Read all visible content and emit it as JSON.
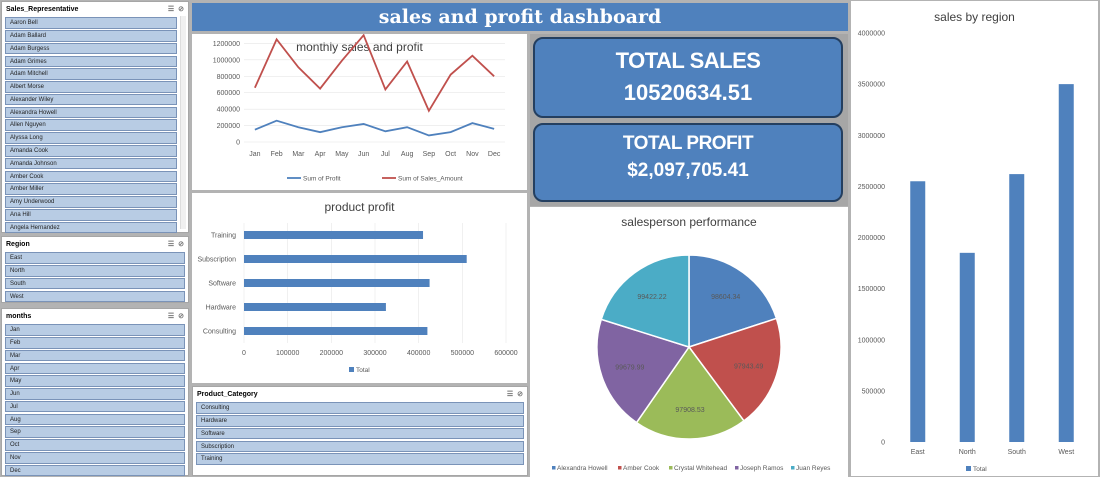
{
  "dashboard_title": "sales and profit dashboard",
  "slicers": {
    "sales_rep": {
      "header": "Sales_Representative",
      "items": [
        "Aaron Bell",
        "Adam Ballard",
        "Adam Burgess",
        "Adam Grimes",
        "Adam Mitchell",
        "Albert Morse",
        "Alexander Wiley",
        "Alexandra Howell",
        "Allen Nguyen",
        "Alyssa Long",
        "Amanda Cook",
        "Amanda Johnson",
        "Amber Cook",
        "Amber Miller",
        "Amy Underwood",
        "Ana Hill",
        "Angela Hernandez"
      ]
    },
    "region": {
      "header": "Region",
      "items": [
        "East",
        "North",
        "South",
        "West"
      ]
    },
    "months": {
      "header": "months",
      "items": [
        "Jan",
        "Feb",
        "Mar",
        "Apr",
        "May",
        "Jun",
        "Jul",
        "Aug",
        "Sep",
        "Oct",
        "Nov",
        "Dec"
      ]
    },
    "product_category": {
      "header": "Product_Category",
      "items": [
        "Consulting",
        "Hardware",
        "Software",
        "Subscription",
        "Training"
      ]
    }
  },
  "kpis": {
    "total_sales_label": "TOTAL SALES",
    "total_sales_value": "10520634.51",
    "total_profit_label": "TOTAL PROFIT",
    "total_profit_value": "$2,097,705.41"
  },
  "colors": {
    "accent": "#4f81bd",
    "sales_line": "#c0504d",
    "profit_line": "#4f81bd",
    "slicer_item": "#b8cce4"
  },
  "chart_data": [
    {
      "id": "monthly",
      "type": "line",
      "title": "monthly sales and profit",
      "categories": [
        "Jan",
        "Feb",
        "Mar",
        "Apr",
        "May",
        "Jun",
        "Jul",
        "Aug",
        "Sep",
        "Oct",
        "Nov",
        "Dec"
      ],
      "series": [
        {
          "name": "Sum of Profit",
          "color": "#4f81bd",
          "values": [
            150000,
            260000,
            180000,
            120000,
            180000,
            220000,
            130000,
            180000,
            80000,
            120000,
            230000,
            160000
          ]
        },
        {
          "name": "Sum of Sales_Amount",
          "color": "#c0504d",
          "values": [
            660000,
            1250000,
            910000,
            650000,
            990000,
            1300000,
            640000,
            980000,
            380000,
            820000,
            1050000,
            800000
          ]
        }
      ],
      "yticks": [
        "0",
        "200000",
        "400000",
        "600000",
        "800000",
        "1000000",
        "1200000",
        "1400000"
      ],
      "ylim": [
        0,
        1400000
      ],
      "grid": true,
      "legend": "bottom"
    },
    {
      "id": "product",
      "type": "bar",
      "orientation": "horizontal",
      "title": "product profit",
      "categories": [
        "Training",
        "Subscription",
        "Software",
        "Hardware",
        "Consulting"
      ],
      "values": [
        410000,
        510000,
        425000,
        325000,
        420000
      ],
      "xticks": [
        "0",
        "100000",
        "200000",
        "300000",
        "400000",
        "500000",
        "600000"
      ],
      "xlim": [
        0,
        600000
      ],
      "grid": true,
      "legend_label": "Total",
      "legend": "bottom"
    },
    {
      "id": "salesperson",
      "type": "pie",
      "title": "salesperson performance",
      "slices": [
        {
          "name": "Alexandra Howell",
          "value": 98604.34,
          "label": "98604.34",
          "color": "#4f81bd"
        },
        {
          "name": "Amber Cook",
          "value": 97943.49,
          "label": "97943.49",
          "color": "#c0504d"
        },
        {
          "name": "Crystal Whitehead",
          "value": 97908.53,
          "label": "97908.53",
          "color": "#9bbb59"
        },
        {
          "name": "Joseph Ramos",
          "value": 99679.99,
          "label": "99679.99",
          "color": "#8064a2"
        },
        {
          "name": "Juan Reyes",
          "value": 99422.22,
          "label": "99422.22",
          "color": "#4bacc6"
        }
      ],
      "legend": "bottom"
    },
    {
      "id": "region",
      "type": "bar",
      "title": "sales by region",
      "categories": [
        "East",
        "North",
        "South",
        "West"
      ],
      "values": [
        2550000,
        1850000,
        2620000,
        3500000
      ],
      "yticks": [
        "0",
        "500000",
        "1000000",
        "1500000",
        "2000000",
        "2500000",
        "3000000",
        "3500000",
        "4000000"
      ],
      "ylim": [
        0,
        4000000
      ],
      "legend_label": "Total",
      "legend": "bottom"
    }
  ]
}
